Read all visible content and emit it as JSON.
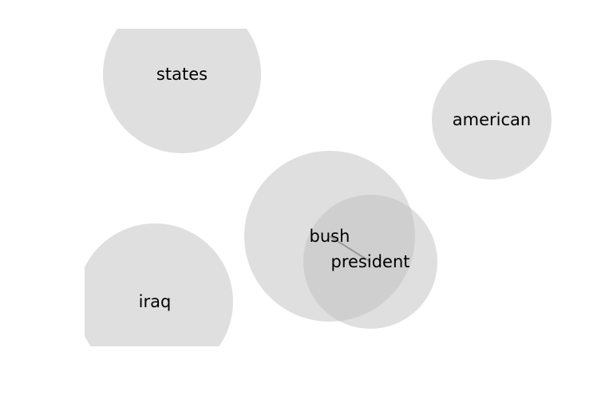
{
  "diagram": {
    "type": "word-bubble-cloud",
    "colors": {
      "bubble_fill": "#bfbfbf",
      "connector": "#999999",
      "label_text": "#000000",
      "background": "#ffffff"
    },
    "terms": [
      {
        "id": "states",
        "label": "states"
      },
      {
        "id": "american",
        "label": "american"
      },
      {
        "id": "bush",
        "label": "bush"
      },
      {
        "id": "president",
        "label": "president"
      },
      {
        "id": "iraq",
        "label": "iraq"
      }
    ],
    "links": [
      {
        "from": "bush",
        "to": "president"
      }
    ]
  }
}
